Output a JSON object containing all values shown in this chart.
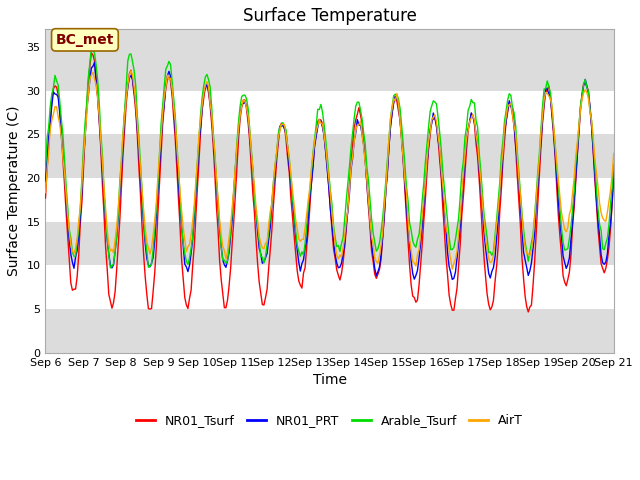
{
  "title": "Surface Temperature",
  "xlabel": "Time",
  "ylabel": "Surface Temperature (C)",
  "ylim": [
    0,
    37
  ],
  "yticks": [
    0,
    5,
    10,
    15,
    20,
    25,
    30,
    35
  ],
  "annotation_text": "BC_met",
  "annotation_box_color": "#FFFFC0",
  "annotation_text_color": "#800000",
  "colors": {
    "NR01_Tsurf": "#FF0000",
    "NR01_PRT": "#0000FF",
    "Arable_Tsurf": "#00DD00",
    "AirT": "#FFA500"
  },
  "legend_labels": [
    "NR01_Tsurf",
    "NR01_PRT",
    "Arable_Tsurf",
    "AirT"
  ],
  "bg_color": "#DCDCDC",
  "band_white": "#FFFFFF",
  "band_gray": "#DCDCDC",
  "start_day": 6,
  "end_day": 21,
  "title_fontsize": 12,
  "axis_label_fontsize": 10,
  "tick_fontsize": 8,
  "legend_fontsize": 9
}
